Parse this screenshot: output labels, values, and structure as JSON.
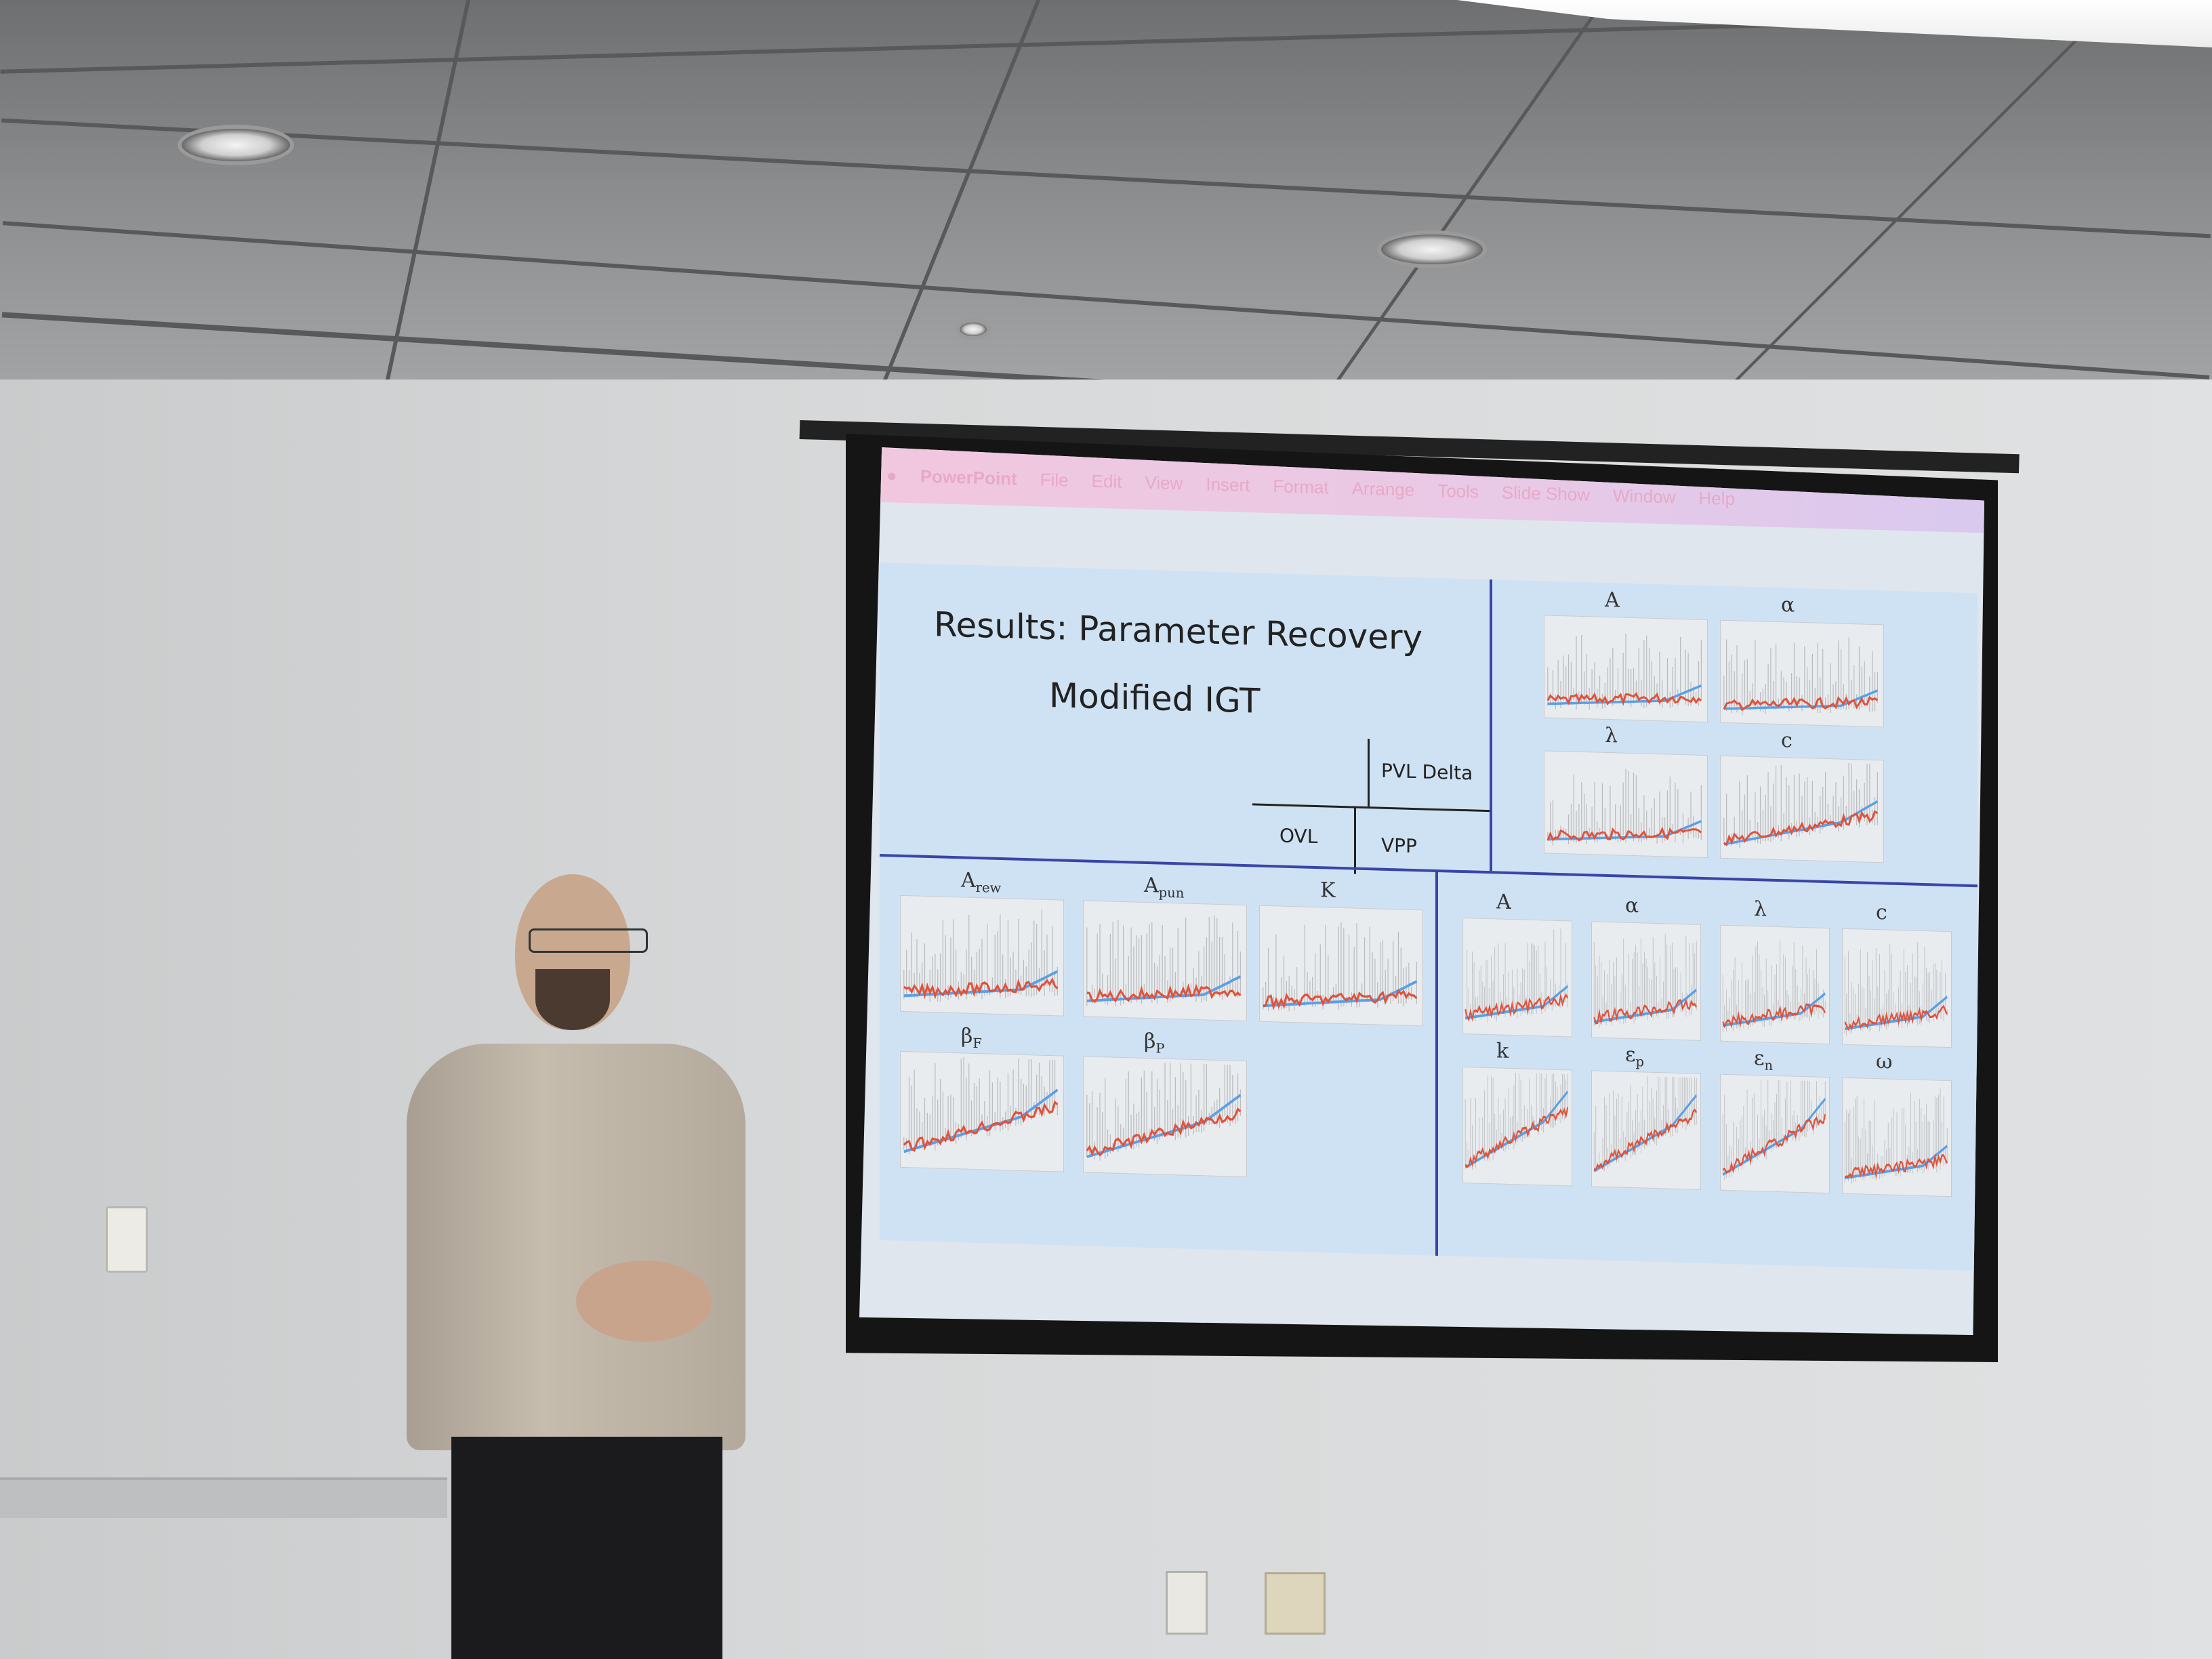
{
  "menubar": {
    "items": [
      "PowerPoint",
      "File",
      "Edit",
      "View",
      "Insert",
      "Format",
      "Arrange",
      "Tools",
      "Slide Show",
      "Window",
      "Help"
    ]
  },
  "slide": {
    "title": "Results: Parameter Recovery",
    "subtitle": "Modified IGT",
    "models": {
      "pvl_delta": "PVL Delta",
      "ovl": "OVL",
      "vpp": "VPP"
    },
    "pvl_plots": [
      "A",
      "α",
      "λ",
      "c"
    ],
    "ovl_plots": [
      {
        "base": "A",
        "sub": "rew"
      },
      {
        "base": "A",
        "sub": "pun"
      },
      {
        "base": "K",
        "sub": ""
      },
      {
        "base": "β",
        "sub": "F"
      },
      {
        "base": "β",
        "sub": "P"
      }
    ],
    "vpp_plots": [
      {
        "base": "A",
        "sub": ""
      },
      {
        "base": "α",
        "sub": ""
      },
      {
        "base": "λ",
        "sub": ""
      },
      {
        "base": "c",
        "sub": ""
      },
      {
        "base": "k",
        "sub": ""
      },
      {
        "base": "ε",
        "sub": "p"
      },
      {
        "base": "ε",
        "sub": "n"
      },
      {
        "base": "ω",
        "sub": ""
      }
    ]
  },
  "colors": {
    "series_red": "#e0523a",
    "series_blue": "#5aa0e8",
    "series_gray": "#9a9a9a",
    "divider": "#3a45a8"
  }
}
